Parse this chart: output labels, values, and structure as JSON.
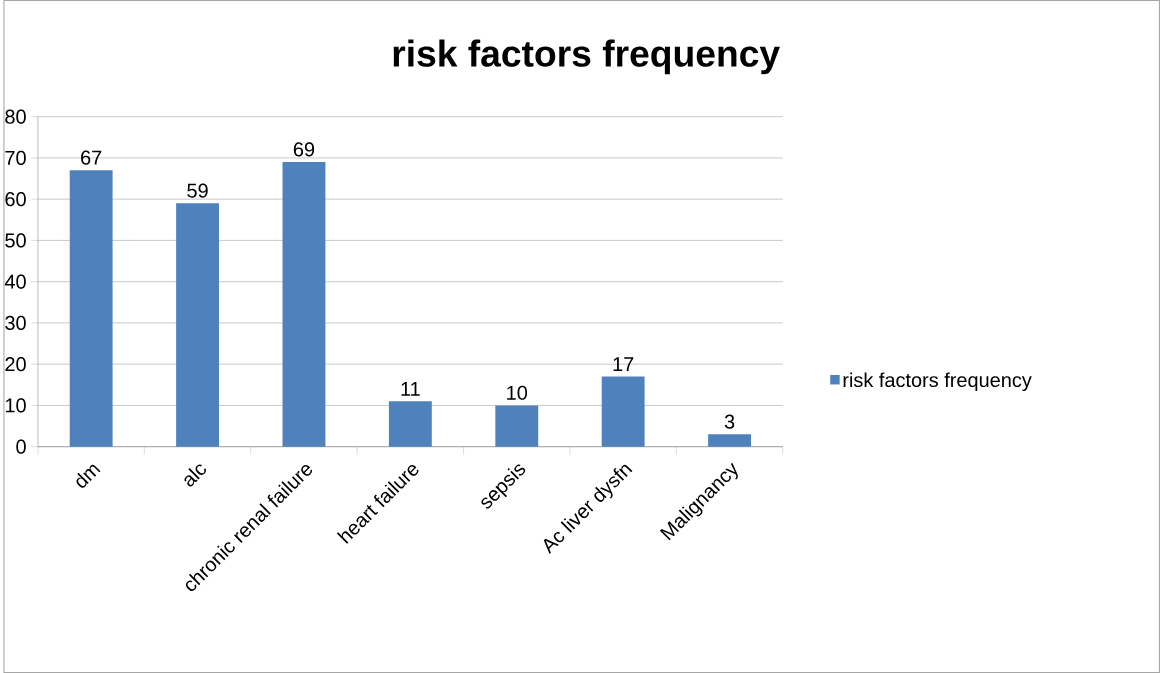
{
  "chart_data": {
    "type": "bar",
    "title": "risk factors frequency",
    "categories": [
      "dm",
      "alc",
      "chronic renal failure",
      "heart failure",
      "sepsis",
      "Ac liver dysfn",
      "Malignancy"
    ],
    "series": [
      {
        "name": "risk factors frequency",
        "color": "#4f81bd",
        "values": [
          67,
          59,
          69,
          11,
          10,
          17,
          3
        ]
      }
    ],
    "ylim": [
      0,
      80
    ],
    "yticks": [
      0,
      10,
      20,
      30,
      40,
      50,
      60,
      70,
      80
    ],
    "grid": "y",
    "legend": "right",
    "data_labels": true
  }
}
